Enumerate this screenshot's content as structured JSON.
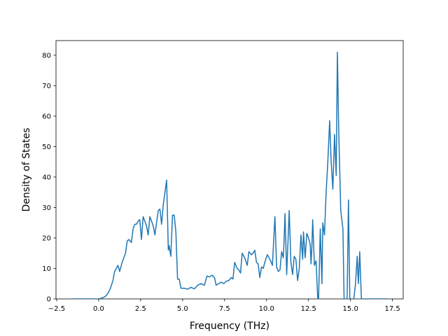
{
  "chart_data": {
    "type": "line",
    "xlabel": "Frequency (THz)",
    "ylabel": "Density of States",
    "xlim": [
      -2.54,
      18.14
    ],
    "ylim": [
      0,
      84.8
    ],
    "xticks": [
      {
        "value": -2.5,
        "label": "−2.5"
      },
      {
        "value": 0,
        "label": "0.0"
      },
      2.5,
      {
        "value": 5,
        "label": "5.0"
      },
      7.5,
      {
        "value": 10,
        "label": "10.0"
      },
      12.5,
      {
        "value": 15,
        "label": "15.0"
      },
      17.5
    ],
    "yticks": [
      0,
      10,
      20,
      30,
      40,
      50,
      60,
      70,
      80
    ],
    "grid": false,
    "series": [
      {
        "color": "#1f77b4",
        "x": [
          -1.6,
          0,
          0.2,
          0.4,
          0.55,
          0.7,
          0.85,
          0.95,
          1.05,
          1.15,
          1.25,
          1.4,
          1.6,
          1.7,
          1.8,
          1.95,
          2.05,
          2.15,
          2.25,
          2.35,
          2.45,
          2.55,
          2.65,
          2.75,
          2.85,
          2.95,
          3.05,
          3.15,
          3.25,
          3.35,
          3.45,
          3.55,
          3.65,
          3.75,
          3.85,
          3.95,
          4.05,
          4.15,
          4.2,
          4.3,
          4.4,
          4.5,
          4.6,
          4.7,
          4.8,
          4.9,
          5.1,
          5.3,
          5.5,
          5.7,
          5.9,
          6.1,
          6.3,
          6.45,
          6.6,
          6.75,
          6.9,
          7.0,
          7.15,
          7.3,
          7.45,
          7.6,
          7.75,
          7.9,
          8.0,
          8.1,
          8.25,
          8.35,
          8.45,
          8.55,
          8.7,
          8.85,
          8.95,
          9.1,
          9.2,
          9.3,
          9.4,
          9.5,
          9.6,
          9.7,
          9.8,
          9.95,
          10.05,
          10.2,
          10.35,
          10.5,
          10.6,
          10.7,
          10.8,
          10.9,
          11.0,
          11.05,
          11.1,
          11.2,
          11.35,
          11.45,
          11.55,
          11.65,
          11.75,
          11.85,
          11.95,
          12.05,
          12.15,
          12.2,
          12.3,
          12.4,
          12.5,
          12.6,
          12.65,
          12.7,
          12.75,
          12.85,
          12.95,
          13.05,
          13.1,
          13.2,
          13.3,
          13.35,
          13.45,
          13.55,
          13.65,
          13.76,
          13.85,
          13.95,
          14.05,
          14.15,
          14.22,
          14.3,
          14.42,
          14.55,
          14.62,
          14.8,
          14.88,
          14.96,
          15.1,
          15.2,
          15.3,
          15.4,
          15.47,
          15.55,
          15.65,
          17.2
        ],
        "values": [
          0,
          0,
          0.3,
          0.8,
          1.8,
          3.5,
          6,
          9,
          10,
          11,
          9,
          12,
          15,
          19,
          19.5,
          18.5,
          23,
          24.5,
          24.5,
          25.5,
          26,
          19.5,
          27,
          25.5,
          24,
          21,
          27,
          25.5,
          24,
          21,
          25,
          29,
          29.5,
          24.5,
          31,
          35,
          39,
          16,
          17.5,
          14,
          27.5,
          27.5,
          22,
          6.5,
          6.5,
          3.5,
          3.5,
          3.2,
          3.8,
          3.3,
          4.5,
          5,
          4.5,
          7.5,
          7.2,
          7.8,
          7,
          4.5,
          5,
          5.5,
          5,
          5.8,
          6,
          7,
          6.5,
          12,
          10,
          9.5,
          8.5,
          15,
          13.5,
          11,
          15.5,
          14.5,
          15,
          16,
          12,
          11.5,
          7,
          10.5,
          10,
          13,
          14.5,
          13,
          11,
          27,
          10.5,
          9,
          9.5,
          15.5,
          13.5,
          20,
          28,
          8,
          29,
          12,
          8,
          14,
          13,
          6,
          10,
          21,
          13,
          22,
          13.5,
          21.5,
          20,
          18,
          11.5,
          17,
          26,
          11,
          12.5,
          0,
          0,
          23,
          5,
          25,
          21,
          35,
          45,
          58.5,
          45,
          36,
          54,
          40.5,
          81,
          55,
          29,
          23,
          0,
          0,
          32.5,
          0,
          0,
          0,
          5,
          14,
          5,
          15.5,
          0,
          0
        ]
      }
    ]
  }
}
